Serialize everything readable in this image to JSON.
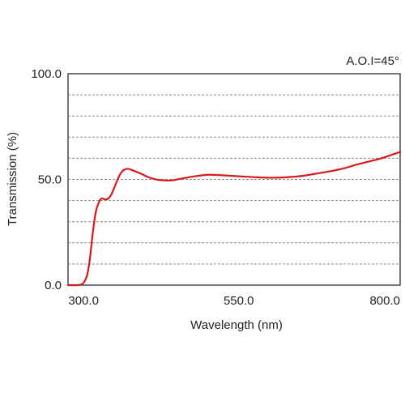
{
  "chart_data": {
    "type": "line",
    "title": "",
    "xlabel": "Wavelength (nm)",
    "ylabel": "Transmission (%)",
    "annotation": "A.O.I=45°",
    "xlim": [
      275,
      810
    ],
    "ylim": [
      0,
      100
    ],
    "x_ticks": [
      300,
      550,
      800
    ],
    "x_tick_labels": [
      "300.0",
      "550.0",
      "800.0"
    ],
    "y_ticks": [
      0,
      50,
      100
    ],
    "y_tick_labels": [
      "0.0",
      "50.0",
      "100.0"
    ],
    "grid": true,
    "gridline_values": [
      10,
      20,
      30,
      40,
      50,
      60,
      70,
      80,
      90
    ],
    "colors": {
      "series": "#d7191c",
      "frame": "#555555",
      "grid": "#8a8a8a"
    },
    "series": [
      {
        "x": [
          275,
          290,
          298,
          302,
          306,
          310,
          315,
          320,
          326,
          330,
          335,
          340,
          345,
          350,
          355,
          360,
          365,
          372,
          380,
          392,
          405,
          420,
          440,
          460,
          480,
          500,
          520,
          550,
          580,
          610,
          640,
          660,
          680,
          700,
          720,
          740,
          760,
          780,
          800,
          810
        ],
        "y": [
          0,
          0,
          0.5,
          2,
          5,
          12,
          25,
          35,
          40,
          41,
          40.5,
          41,
          43,
          46.5,
          50,
          53,
          54.5,
          55,
          54.2,
          52.8,
          51,
          49.8,
          49.5,
          50.5,
          51.5,
          52.2,
          52,
          51.5,
          51,
          50.8,
          51.3,
          52,
          53,
          54,
          55.3,
          57,
          58.5,
          60,
          62,
          63
        ]
      }
    ]
  }
}
